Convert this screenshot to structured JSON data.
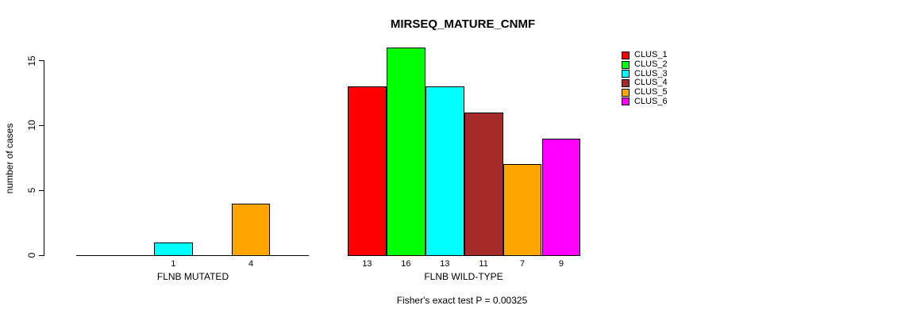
{
  "chart_data": {
    "type": "bar",
    "title": "MIRSEQ_MATURE_CNMF",
    "ylabel": "number of cases",
    "ylim": [
      0,
      15
    ],
    "yticks": [
      0,
      5,
      10,
      15
    ],
    "grid": false,
    "legend_position": "topright",
    "series_labels": [
      "CLUS_1",
      "CLUS_2",
      "CLUS_3",
      "CLUS_4",
      "CLUS_5",
      "CLUS_6"
    ],
    "colors": [
      "#FF0000",
      "#00FF00",
      "#00FFFF",
      "#A52A2A",
      "#FFA500",
      "#FF00FF"
    ],
    "groups": [
      {
        "label": "FLNB MUTATED",
        "values": [
          0,
          0,
          1,
          0,
          4,
          0
        ]
      },
      {
        "label": "FLNB WILD-TYPE",
        "values": [
          13,
          16,
          13,
          11,
          7,
          9
        ]
      }
    ],
    "value_label_rule": "nonzero",
    "annotation": "Fisher's exact test P = 0.00325"
  }
}
